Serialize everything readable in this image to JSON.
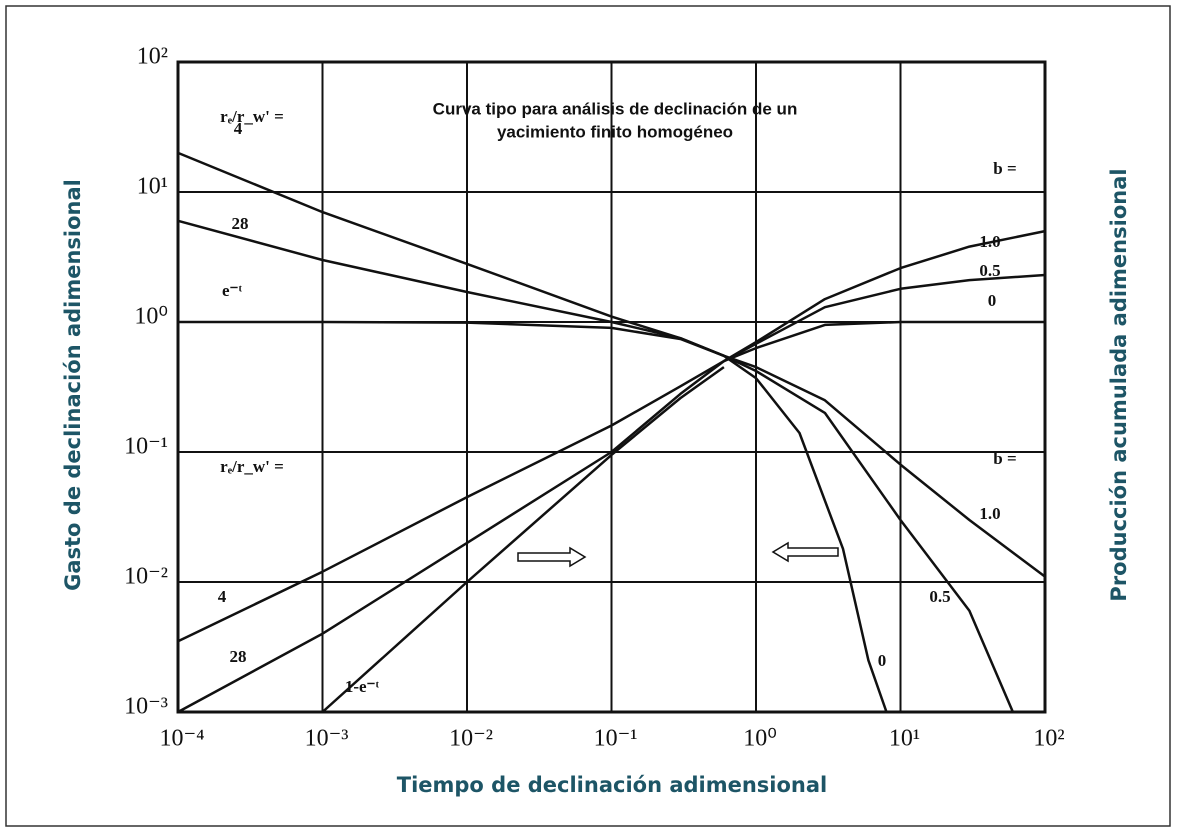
{
  "chart_data": {
    "type": "line",
    "title": [
      "Curva tipo para análisis de declinación de un",
      "yacimiento finito homogéneo"
    ],
    "x_label": "Tiempo de declinación adimensional",
    "y_label": "Gasto de declinación adimensional",
    "y2_label": "Producción acumulada adimensional",
    "xscale": "log",
    "yscale": "log",
    "grid": true,
    "xlim": [
      0.0001,
      100
    ],
    "ylim": [
      0.001,
      100
    ],
    "xticks": [
      {
        "value": 0.0001,
        "label": "10⁻⁴"
      },
      {
        "value": 0.001,
        "label": "10⁻³"
      },
      {
        "value": 0.01,
        "label": "10⁻²"
      },
      {
        "value": 0.1,
        "label": "10⁻¹"
      },
      {
        "value": 1,
        "label": "10⁰"
      },
      {
        "value": 10,
        "label": "10¹"
      },
      {
        "value": 100,
        "label": "10²"
      }
    ],
    "yticks": [
      {
        "value": 0.001,
        "label": "10⁻³"
      },
      {
        "value": 0.01,
        "label": "10⁻²"
      },
      {
        "value": 0.1,
        "label": "10⁻¹"
      },
      {
        "value": 1,
        "label": "10⁰"
      },
      {
        "value": 10,
        "label": "10¹"
      },
      {
        "value": 100,
        "label": "10²"
      }
    ],
    "annotations": [
      "rₑ/r_w' =",
      "b =",
      "rₑ/r_w' =",
      "b ="
    ],
    "series": [
      {
        "name": "4",
        "color": "#111111",
        "x": [
          0.0001,
          0.001,
          0.01,
          0.1,
          0.3,
          0.6
        ],
        "values": [
          20,
          7,
          2.8,
          1.1,
          0.75,
          0.55
        ]
      },
      {
        "name": "28",
        "color": "#111111",
        "x": [
          0.0001,
          0.001,
          0.01,
          0.1,
          0.3,
          0.6
        ],
        "values": [
          6,
          3,
          1.7,
          1.0,
          0.75,
          0.55
        ]
      },
      {
        "name": "e⁻ᵗ",
        "color": "#111111",
        "x": [
          0.0001,
          0.001,
          0.01,
          0.1,
          0.3,
          0.6
        ],
        "values": [
          1,
          1,
          0.99,
          0.9,
          0.74,
          0.55
        ]
      },
      {
        "name": "1.0",
        "color": "#111111",
        "x": [
          0.6,
          1,
          3,
          10,
          30,
          100
        ],
        "values": [
          0.55,
          0.45,
          0.25,
          0.08,
          0.03,
          0.011
        ]
      },
      {
        "name": "0.5",
        "color": "#111111",
        "x": [
          0.6,
          1,
          3,
          10,
          30,
          60
        ],
        "values": [
          0.55,
          0.42,
          0.2,
          0.03,
          0.006,
          0.001
        ]
      },
      {
        "name": "0",
        "color": "#111111",
        "x": [
          0.6,
          1,
          2,
          4,
          6,
          8
        ],
        "values": [
          0.55,
          0.37,
          0.14,
          0.018,
          0.0025,
          0.001
        ]
      },
      {
        "name": "4",
        "color": "#111111",
        "x": [
          0.0001,
          0.001,
          0.01,
          0.1,
          0.3,
          0.6
        ],
        "values": [
          0.0035,
          0.012,
          0.045,
          0.16,
          0.32,
          0.5
        ]
      },
      {
        "name": "28",
        "color": "#111111",
        "x": [
          0.0001,
          0.001,
          0.01,
          0.1,
          0.3,
          0.6
        ],
        "values": [
          0.001,
          0.004,
          0.02,
          0.1,
          0.28,
          0.5
        ]
      },
      {
        "name": "1-e⁻ᵗ",
        "color": "#111111",
        "x": [
          0.001,
          0.01,
          0.1,
          0.3,
          0.6
        ],
        "values": [
          0.001,
          0.01,
          0.095,
          0.26,
          0.45
        ]
      },
      {
        "name": "1.0",
        "color": "#111111",
        "x": [
          0.6,
          1,
          3,
          10,
          30,
          100
        ],
        "values": [
          0.5,
          0.7,
          1.5,
          2.6,
          3.8,
          5
        ]
      },
      {
        "name": "0.5",
        "color": "#111111",
        "x": [
          0.6,
          1,
          3,
          10,
          30,
          100
        ],
        "values": [
          0.5,
          0.68,
          1.3,
          1.8,
          2.1,
          2.3
        ]
      },
      {
        "name": "0",
        "color": "#111111",
        "x": [
          0.6,
          1,
          3,
          10,
          30,
          100
        ],
        "values": [
          0.5,
          0.63,
          0.95,
          1,
          1,
          1
        ]
      }
    ]
  }
}
